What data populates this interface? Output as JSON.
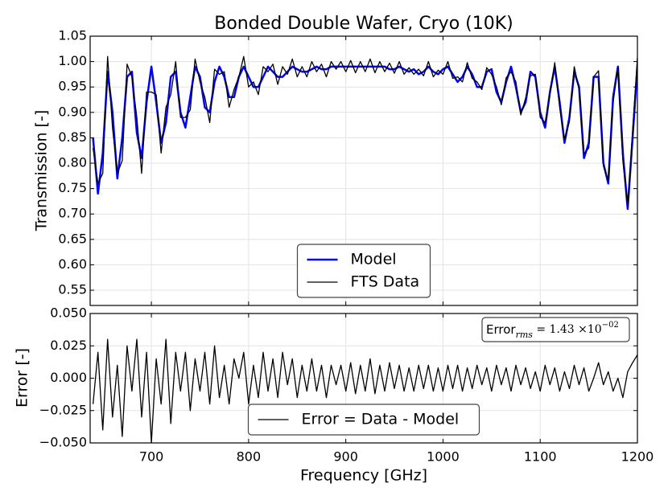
{
  "chart_data": [
    {
      "type": "line",
      "title": "Bonded Double Wafer, Cryo (10K)",
      "ylabel": "Transmission [-]",
      "legend": "lower center",
      "grid": true,
      "x": [
        640,
        645,
        650,
        655,
        660,
        665,
        670,
        675,
        680,
        685,
        690,
        695,
        700,
        705,
        710,
        715,
        720,
        725,
        730,
        735,
        740,
        745,
        750,
        755,
        760,
        765,
        770,
        775,
        780,
        785,
        790,
        795,
        800,
        805,
        810,
        815,
        820,
        825,
        830,
        835,
        840,
        845,
        850,
        855,
        860,
        865,
        870,
        875,
        880,
        885,
        890,
        895,
        900,
        905,
        910,
        915,
        920,
        925,
        930,
        935,
        940,
        945,
        950,
        955,
        960,
        965,
        970,
        975,
        980,
        985,
        990,
        995,
        1000,
        1005,
        1010,
        1015,
        1020,
        1025,
        1030,
        1035,
        1040,
        1045,
        1050,
        1055,
        1060,
        1065,
        1070,
        1075,
        1080,
        1085,
        1090,
        1095,
        1100,
        1105,
        1110,
        1115,
        1120,
        1125,
        1130,
        1135,
        1140,
        1145,
        1150,
        1155,
        1160,
        1165,
        1170,
        1175,
        1180,
        1185,
        1190,
        1195,
        1200
      ],
      "series": [
        {
          "name": "Model",
          "color": "#0000ff",
          "width": 2.5,
          "values": [
            0.85,
            0.74,
            0.82,
            0.98,
            0.9,
            0.77,
            0.85,
            0.97,
            0.98,
            0.86,
            0.81,
            0.92,
            0.99,
            0.92,
            0.84,
            0.88,
            0.97,
            0.98,
            0.9,
            0.87,
            0.93,
            0.99,
            0.97,
            0.91,
            0.9,
            0.96,
            0.99,
            0.97,
            0.93,
            0.93,
            0.97,
            0.99,
            0.97,
            0.95,
            0.95,
            0.97,
            0.99,
            0.98,
            0.97,
            0.97,
            0.98,
            0.99,
            0.985,
            0.98,
            0.98,
            0.985,
            0.99,
            0.985,
            0.985,
            0.99,
            0.99,
            0.99,
            0.99,
            0.99,
            0.99,
            0.99,
            0.99,
            0.99,
            0.99,
            0.99,
            0.99,
            0.985,
            0.985,
            0.99,
            0.985,
            0.98,
            0.985,
            0.975,
            0.98,
            0.99,
            0.98,
            0.975,
            0.985,
            0.99,
            0.975,
            0.96,
            0.97,
            0.99,
            0.975,
            0.95,
            0.95,
            0.98,
            0.985,
            0.94,
            0.92,
            0.96,
            0.99,
            0.95,
            0.9,
            0.92,
            0.98,
            0.97,
            0.9,
            0.87,
            0.94,
            0.99,
            0.92,
            0.84,
            0.89,
            0.98,
            0.95,
            0.81,
            0.84,
            0.97,
            0.97,
            0.8,
            0.76,
            0.93,
            0.99,
            0.82,
            0.71,
            0.85,
            0.99
          ]
        },
        {
          "name": "FTS Data",
          "color": "#000000",
          "width": 1.3,
          "values": [
            0.83,
            0.76,
            0.78,
            1.01,
            0.87,
            0.78,
            0.805,
            0.995,
            0.97,
            0.89,
            0.78,
            0.94,
            0.94,
            0.935,
            0.82,
            0.91,
            0.935,
            1.0,
            0.89,
            0.89,
            0.905,
            1.005,
            0.96,
            0.93,
            0.88,
            0.985,
            0.975,
            0.98,
            0.91,
            0.945,
            0.97,
            1.01,
            0.95,
            0.96,
            0.935,
            0.99,
            0.98,
            0.995,
            0.955,
            0.99,
            0.975,
            1.005,
            0.97,
            0.99,
            0.97,
            1.0,
            0.98,
            0.995,
            0.97,
            1.0,
            0.985,
            1.0,
            0.98,
            1.002,
            0.978,
            1.0,
            0.98,
            1.005,
            0.978,
            1.0,
            0.98,
            0.997,
            0.977,
            1.0,
            0.975,
            0.988,
            0.975,
            0.985,
            0.972,
            1.0,
            0.97,
            0.983,
            0.975,
            1.0,
            0.967,
            0.97,
            0.96,
            0.998,
            0.967,
            0.96,
            0.945,
            0.988,
            0.975,
            0.95,
            0.915,
            0.968,
            0.98,
            0.96,
            0.895,
            0.928,
            0.972,
            0.975,
            0.89,
            0.88,
            0.935,
            0.998,
            0.91,
            0.845,
            0.882,
            0.99,
            0.945,
            0.818,
            0.83,
            0.97,
            0.982,
            0.795,
            0.765,
            0.92,
            0.99,
            0.805,
            0.715,
            0.862,
            1.008
          ]
        }
      ],
      "ylim": [
        0.52,
        1.05
      ],
      "yticks": [
        0.55,
        {
          "value": 0.6,
          "label": "0.60"
        },
        0.65,
        {
          "value": 0.7,
          "label": "0.70"
        },
        0.75,
        {
          "value": 0.8,
          "label": "0.80"
        },
        0.85,
        {
          "value": 0.9,
          "label": "0.90"
        },
        0.95,
        {
          "value": 1.0,
          "label": "1.00"
        },
        1.05
      ]
    },
    {
      "type": "line",
      "ylabel": "Error [-]",
      "xlabel": "Frequency [GHz]",
      "legend": "lower center",
      "grid": true,
      "series": [
        {
          "name": "Error = Data - Model",
          "color": "#000000",
          "width": 1.3,
          "values": [
            -0.02,
            0.02,
            -0.04,
            0.03,
            -0.03,
            0.01,
            -0.045,
            0.025,
            -0.01,
            0.03,
            -0.03,
            0.02,
            -0.05,
            0.015,
            -0.02,
            0.03,
            -0.035,
            0.02,
            -0.01,
            0.02,
            -0.025,
            0.015,
            -0.01,
            0.02,
            -0.02,
            0.025,
            -0.015,
            0.01,
            -0.02,
            0.015,
            0.0,
            0.02,
            -0.02,
            0.01,
            -0.015,
            0.02,
            -0.01,
            0.015,
            -0.015,
            0.02,
            -0.005,
            0.015,
            -0.015,
            0.01,
            -0.01,
            0.015,
            -0.01,
            0.01,
            -0.015,
            0.01,
            -0.005,
            0.01,
            -0.01,
            0.012,
            -0.012,
            0.01,
            -0.01,
            0.015,
            -0.012,
            0.01,
            -0.01,
            0.012,
            -0.008,
            0.01,
            -0.01,
            0.008,
            -0.01,
            0.01,
            -0.008,
            0.01,
            -0.01,
            0.008,
            -0.01,
            0.01,
            -0.008,
            0.01,
            -0.01,
            0.008,
            -0.008,
            0.01,
            -0.005,
            0.008,
            -0.01,
            0.01,
            -0.005,
            0.008,
            -0.01,
            0.01,
            -0.005,
            0.008,
            -0.008,
            0.005,
            -0.01,
            0.01,
            -0.005,
            0.008,
            -0.01,
            0.005,
            -0.008,
            0.01,
            -0.005,
            0.008,
            -0.01,
            0.0,
            0.012,
            -0.005,
            0.005,
            -0.01,
            0.0,
            -0.015,
            0.005,
            0.012,
            0.018
          ]
        }
      ],
      "annotation": {
        "text": "Error",
        "subscript": "rms",
        "value_text": " = 1.43 ×10",
        "exponent": "−02"
      },
      "xlim": [
        637,
        1200
      ],
      "xticks": [
        700,
        800,
        900,
        1000,
        1100,
        1200
      ],
      "ylim": [
        -0.05,
        0.05
      ],
      "yticks": [
        {
          "value": -0.05,
          "label": "−0.050"
        },
        {
          "value": -0.025,
          "label": "−0.025"
        },
        {
          "value": 0,
          "label": "0.000"
        },
        {
          "value": 0.025,
          "label": "0.025"
        },
        {
          "value": 0.05,
          "label": "0.050"
        }
      ]
    }
  ]
}
